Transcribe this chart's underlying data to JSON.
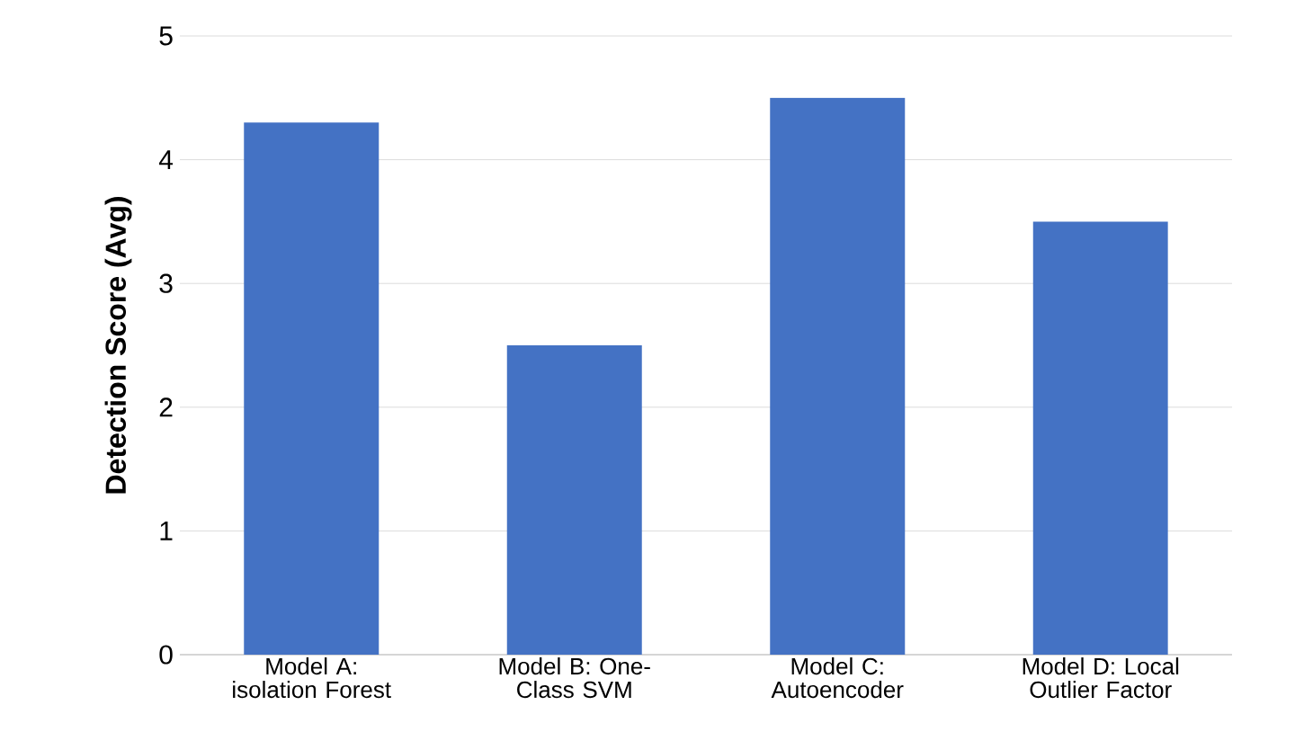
{
  "chart_data": {
    "type": "bar",
    "ylabel": "Detection Score (Avg)",
    "categories": [
      "Model A: isolation Forest",
      "Model B: One-Class SVM",
      "Model C: Autoencoder",
      "Model D: Local Outlier Factor"
    ],
    "values": [
      4.3,
      2.5,
      4.5,
      3.5
    ],
    "color": "#4472c4",
    "ylim": [
      0,
      5
    ],
    "yticks": [
      0,
      1,
      2,
      3,
      4,
      5
    ],
    "grid": "y"
  }
}
